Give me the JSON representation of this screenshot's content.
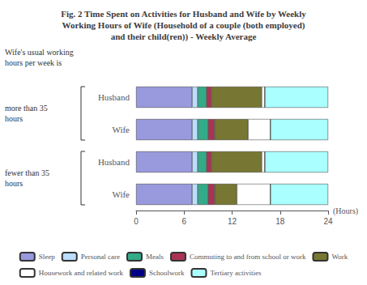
{
  "chart_data": {
    "type": "bar",
    "orientation": "horizontal",
    "stacked": true,
    "title": "Fig. 2 Time Spent on Activities for Husband and Wife by Weekly\nWorking Hours of Wife (Household of a couple (both employed)\nand their child(ren)) - Weekly Average",
    "categories": [
      "Husband",
      "Wife",
      "Husband",
      "Wife"
    ],
    "series": [
      {
        "name": "Sleep",
        "color": "#9999dd",
        "values": [
          7.0,
          7.0,
          7.0,
          7.0
        ]
      },
      {
        "name": "Personal care",
        "color": "#bbddff",
        "values": [
          0.7,
          0.7,
          0.7,
          0.7
        ]
      },
      {
        "name": "Meals",
        "color": "#33aa88",
        "values": [
          1.1,
          1.3,
          1.1,
          1.3
        ]
      },
      {
        "name": "Commuting to and from school or work",
        "color": "#aa3355",
        "values": [
          0.6,
          0.8,
          0.6,
          0.8
        ]
      },
      {
        "name": "Work",
        "color": "#777733",
        "values": [
          6.3,
          4.2,
          6.3,
          2.8
        ]
      },
      {
        "name": "Housework and related work",
        "color": "#ffffff",
        "values": [
          0.4,
          2.8,
          0.4,
          4.2
        ]
      },
      {
        "name": "Schoolwork",
        "color": "#000088",
        "values": [
          0.0,
          0.0,
          0.0,
          0.0
        ]
      },
      {
        "name": "Tertiary activities",
        "color": "#aaffff",
        "values": [
          7.9,
          7.2,
          7.9,
          7.2
        ]
      }
    ],
    "xlim": [
      0,
      24
    ],
    "xticks": [
      0,
      6,
      12,
      18,
      24
    ],
    "xlabel": "(Hours)",
    "intro_label": "Wife's usual working\nhours per week is",
    "group_labels": [
      "more than 35\nhours",
      "fewer than 35\nhours"
    ],
    "legend": "bottom",
    "grid": false
  }
}
